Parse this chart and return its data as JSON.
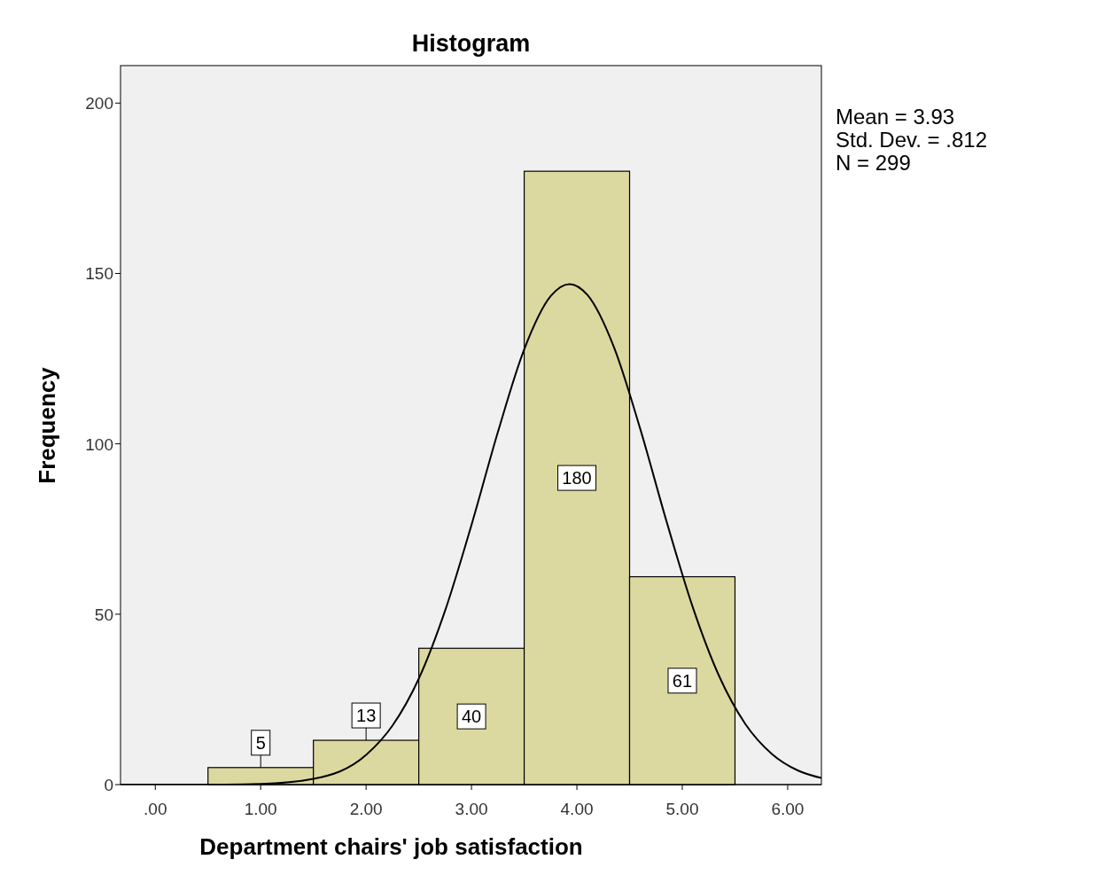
{
  "chart_data": {
    "type": "histogram",
    "title": "Histogram",
    "xlabel": "Department chairs' job satisfaction",
    "ylabel": "Frequency",
    "bins": [
      0.5,
      1.5,
      2.5,
      3.5,
      4.5,
      5.5
    ],
    "values": [
      5,
      13,
      40,
      180,
      61
    ],
    "color": "#dcd9a0",
    "value_labels": [
      "5",
      "13",
      "40",
      "180",
      "61"
    ],
    "series": [
      {
        "type": "line",
        "color": "#000000",
        "x": [
          -0.33,
          0,
          0.5,
          1,
          1.5,
          2,
          2.25,
          2.5,
          2.75,
          3,
          3.25,
          3.5,
          3.75,
          3.93,
          4.1,
          4.35,
          4.6,
          4.85,
          5.1,
          5.35,
          5.6,
          5.85,
          6.1,
          6.32
        ],
        "values": [
          0,
          0,
          0,
          0.2,
          1.7,
          8.7,
          17.3,
          31.1,
          51.1,
          76.2,
          103.4,
          127.7,
          143.3,
          146.9,
          143.7,
          128.5,
          104.5,
          77.3,
          52.0,
          31.8,
          17.7,
          9.0,
          4.1,
          1.93
        ]
      }
    ],
    "xlim": [
      -0.33,
      6.32
    ],
    "ylim": [
      0,
      211
    ],
    "xticks": [
      {
        "value": 0,
        "label": ".00"
      },
      {
        "value": 1,
        "label": "1.00"
      },
      {
        "value": 2,
        "label": "2.00"
      },
      {
        "value": 3,
        "label": "3.00"
      },
      {
        "value": 4,
        "label": "4.00"
      },
      {
        "value": 5,
        "label": "5.00"
      },
      {
        "value": 6,
        "label": "6.00"
      }
    ],
    "yticks": [
      0,
      50,
      100,
      150,
      200
    ],
    "annotations": [
      "Mean = 3.93",
      "Std. Dev. = .812",
      "N = 299"
    ]
  }
}
